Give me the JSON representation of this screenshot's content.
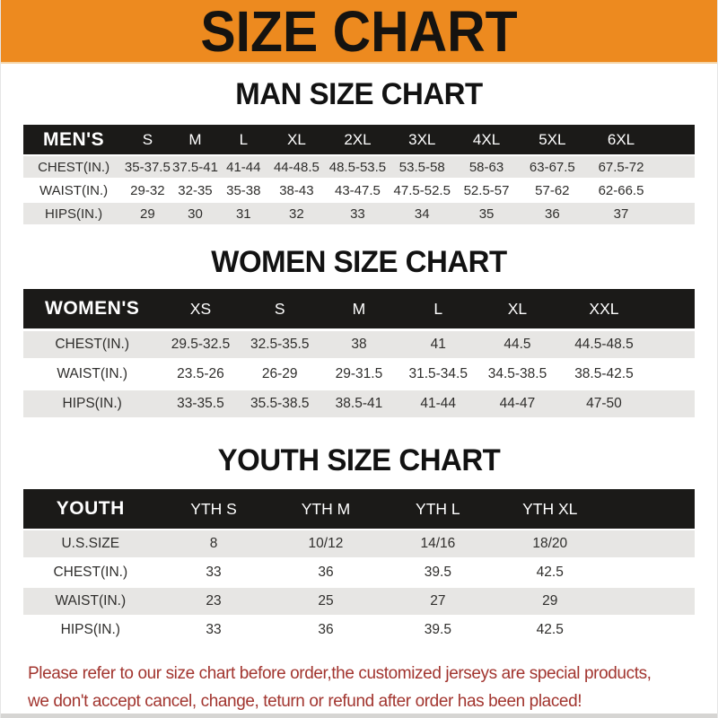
{
  "banner": {
    "title": "SIZE CHART"
  },
  "chart_data": [
    {
      "type": "table",
      "title": "MAN SIZE CHART",
      "header": [
        "MEN'S",
        "S",
        "M",
        "L",
        "XL",
        "2XL",
        "3XL",
        "4XL",
        "5XL",
        "6XL"
      ],
      "rows": [
        [
          "CHEST(IN.)",
          "35-37.5",
          "37.5-41",
          "41-44",
          "44-48.5",
          "48.5-53.5",
          "53.5-58",
          "58-63",
          "63-67.5",
          "67.5-72"
        ],
        [
          "WAIST(IN.)",
          "29-32",
          "32-35",
          "35-38",
          "38-43",
          "43-47.5",
          "47.5-52.5",
          "52.5-57",
          "57-62",
          "62-66.5"
        ],
        [
          "HIPS(IN.)",
          "29",
          "30",
          "31",
          "32",
          "33",
          "34",
          "35",
          "36",
          "37"
        ]
      ]
    },
    {
      "type": "table",
      "title": "WOMEN SIZE CHART",
      "header": [
        "WOMEN'S",
        "XS",
        "S",
        "M",
        "L",
        "XL",
        "XXL"
      ],
      "rows": [
        [
          "CHEST(IN.)",
          "29.5-32.5",
          "32.5-35.5",
          "38",
          "41",
          "44.5",
          "44.5-48.5"
        ],
        [
          "WAIST(IN.)",
          "23.5-26",
          "26-29",
          "29-31.5",
          "31.5-34.5",
          "34.5-38.5",
          "38.5-42.5"
        ],
        [
          "HIPS(IN.)",
          "33-35.5",
          "35.5-38.5",
          "38.5-41",
          "41-44",
          "44-47",
          "47-50"
        ]
      ]
    },
    {
      "type": "table",
      "title": "YOUTH SIZE CHART",
      "header": [
        "YOUTH",
        "YTH S",
        "YTH M",
        "YTH L",
        "YTH XL"
      ],
      "rows": [
        [
          "U.S.SIZE",
          "8",
          "10/12",
          "14/16",
          "18/20"
        ],
        [
          "CHEST(IN.)",
          "33",
          "36",
          "39.5",
          "42.5"
        ],
        [
          "WAIST(IN.)",
          "23",
          "25",
          "27",
          "29"
        ],
        [
          "HIPS(IN.)",
          "33",
          "36",
          "39.5",
          "42.5"
        ]
      ]
    }
  ],
  "footer": {
    "line1": "Please refer to our size chart before order,the customized jerseys are special products,",
    "line2": "we don't accept cancel, change, teturn or refund after order has been placed!"
  },
  "colors": {
    "banner_bg": "#ED8A1F",
    "bar_bg": "#1B1A18",
    "stripe_gray": "#E7E6E4",
    "data_text": "#2F2E2C",
    "footer_red": "#A2352F"
  }
}
